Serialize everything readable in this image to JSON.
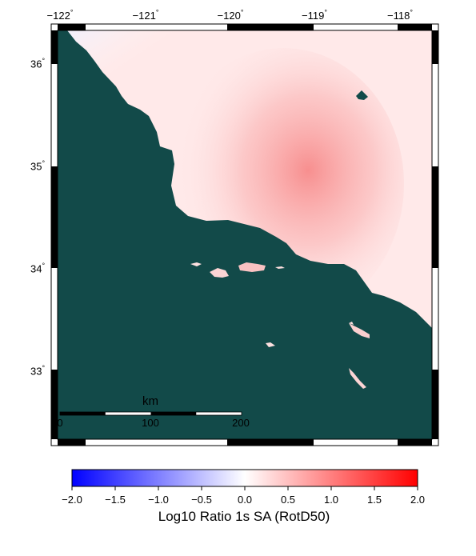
{
  "map": {
    "lon_labels": [
      "−122",
      "−121",
      "−120",
      "−119",
      "−118"
    ],
    "lat_labels": [
      "36",
      "35",
      "34",
      "33"
    ],
    "degree_symbol": "°",
    "land_color": "#ffe9e9",
    "ocean_color": "#124a49",
    "hotspot_color": "#f78a8a",
    "scale_bar": {
      "unit": "km",
      "ticks": [
        "0",
        "100",
        "200"
      ]
    }
  },
  "colorbar": {
    "title": "Log10 Ratio 1s SA (RotD50)",
    "ticks": [
      "−2.0",
      "−1.5",
      "−1.0",
      "−0.5",
      "0.0",
      "0.5",
      "1.0",
      "1.5",
      "2.0"
    ],
    "range": [
      -2.0,
      2.0
    ],
    "colors": {
      "min": "#0000ff",
      "mid": "#ffffff",
      "max": "#ff0000"
    }
  }
}
